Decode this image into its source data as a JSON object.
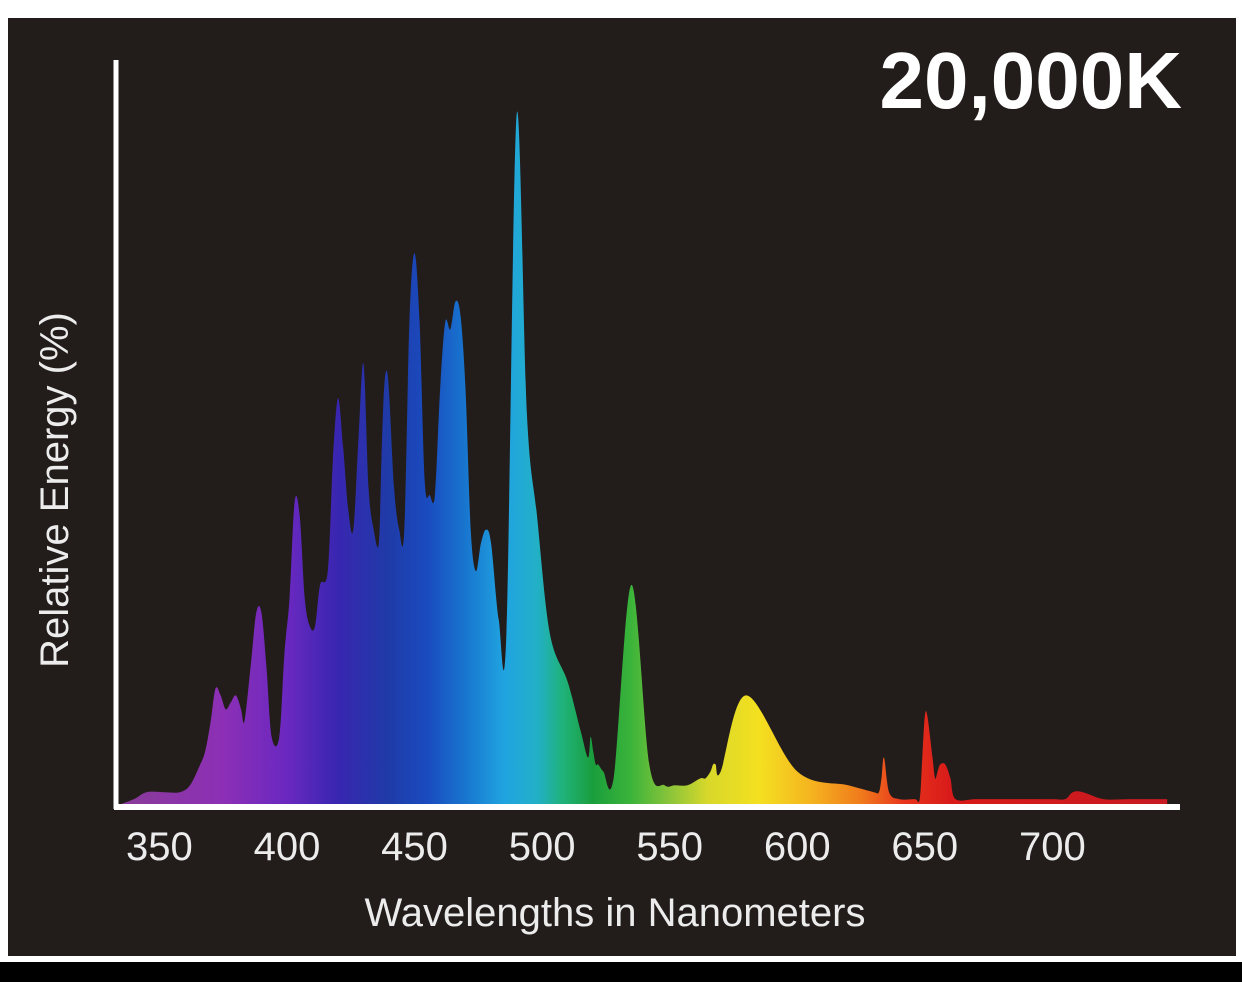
{
  "chart_data": {
    "type": "area",
    "title": "20,000K",
    "xlabel": "Wavelengths in Nanometers",
    "ylabel": "Relative Energy (%)",
    "xlim": [
      333,
      750
    ],
    "ylim": [
      0,
      100
    ],
    "grid": false,
    "legend": "none",
    "x_ticks": [
      "350",
      "400",
      "450",
      "500",
      "550",
      "600",
      "650",
      "700"
    ],
    "x": [
      333,
      340,
      345,
      352,
      358,
      362,
      366,
      368,
      370,
      372,
      374,
      376,
      378,
      380,
      382,
      383,
      384,
      386,
      388,
      390,
      392,
      394,
      397,
      399,
      401,
      403,
      405,
      407,
      409,
      411,
      413,
      416,
      418,
      420,
      422,
      424,
      426,
      428,
      430,
      432,
      434,
      436,
      437,
      438,
      439,
      440,
      442,
      444,
      446,
      448,
      450,
      452,
      454,
      456,
      458,
      460,
      462,
      464,
      466,
      468,
      470,
      472,
      474,
      476,
      478,
      480,
      483,
      486,
      490,
      494,
      498,
      503,
      510,
      515,
      518,
      519,
      520,
      521,
      522,
      524,
      528,
      535,
      542,
      548,
      552,
      557,
      562,
      564,
      566,
      567,
      568,
      570,
      580,
      600,
      620,
      630,
      632,
      633,
      634,
      636,
      640,
      646,
      648,
      649,
      650,
      651,
      653,
      654,
      655,
      656,
      658,
      660,
      662,
      670,
      680,
      690,
      700,
      705,
      708,
      712,
      720,
      730,
      740,
      745
    ],
    "values": [
      0,
      1,
      2,
      2,
      2,
      3,
      6,
      8,
      12,
      17,
      16,
      14,
      15,
      16,
      14,
      12,
      14,
      21,
      28,
      28,
      20,
      10,
      10,
      22,
      30,
      44,
      42,
      30,
      26,
      26,
      32,
      34,
      50,
      59,
      52,
      43,
      40,
      53,
      64,
      46,
      40,
      38,
      50,
      60,
      63,
      60,
      46,
      40,
      40,
      70,
      80,
      70,
      47,
      45,
      45,
      60,
      70,
      69,
      73,
      71,
      60,
      40,
      34,
      38,
      40,
      38,
      27,
      25,
      100,
      57,
      42,
      25,
      18,
      11,
      7,
      10,
      8,
      6,
      6,
      5,
      4,
      32,
      6,
      3,
      3,
      3,
      4,
      4,
      5,
      6,
      6,
      5,
      16,
      5,
      3,
      2,
      2,
      4,
      7,
      2,
      1,
      1,
      1,
      7,
      13,
      13,
      7,
      4,
      5,
      6,
      6,
      4,
      1,
      1,
      1,
      1,
      1,
      1,
      2,
      2,
      1,
      1,
      1,
      1
    ],
    "spectrum_gradient": [
      {
        "x": 340,
        "color": "#8a3a9c"
      },
      {
        "x": 375,
        "color": "#8c2fb6"
      },
      {
        "x": 400,
        "color": "#6a28c0"
      },
      {
        "x": 420,
        "color": "#3826b0"
      },
      {
        "x": 440,
        "color": "#1f3ba8"
      },
      {
        "x": 455,
        "color": "#1a4bbf"
      },
      {
        "x": 470,
        "color": "#1876cf"
      },
      {
        "x": 485,
        "color": "#20a3e0"
      },
      {
        "x": 498,
        "color": "#22b0c8"
      },
      {
        "x": 508,
        "color": "#1fb27a"
      },
      {
        "x": 520,
        "color": "#1a9e3c"
      },
      {
        "x": 535,
        "color": "#3cb43a"
      },
      {
        "x": 550,
        "color": "#8ac43a"
      },
      {
        "x": 565,
        "color": "#d8d82a"
      },
      {
        "x": 585,
        "color": "#f4e020"
      },
      {
        "x": 605,
        "color": "#f5b51f"
      },
      {
        "x": 625,
        "color": "#f07a1c"
      },
      {
        "x": 642,
        "color": "#e8341c"
      },
      {
        "x": 660,
        "color": "#d81a1a"
      },
      {
        "x": 700,
        "color": "#d01a1c"
      },
      {
        "x": 740,
        "color": "#c81a22"
      }
    ],
    "colors": {
      "background": "#221c1b",
      "axis": "#ffffff",
      "text": "#ececec",
      "title": "#ffffff"
    }
  }
}
